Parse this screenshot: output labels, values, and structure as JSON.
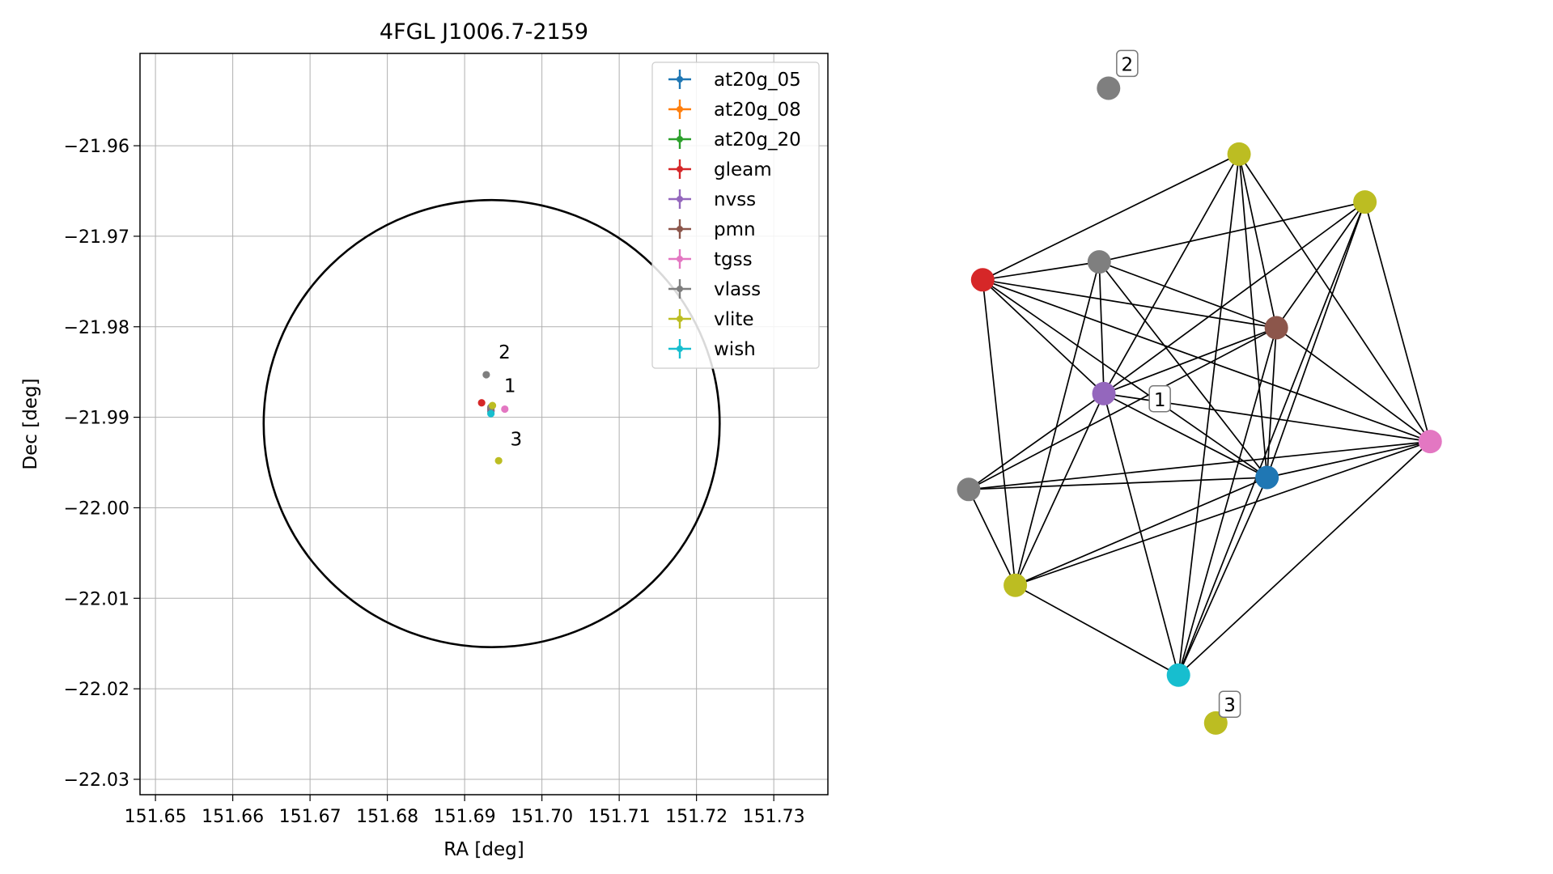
{
  "chart_data": [
    {
      "type": "scatter",
      "title": "4FGL J1006.7-2159",
      "xlabel": "RA [deg]",
      "ylabel": "Dec [deg]",
      "xlim": [
        151.648,
        151.737
      ],
      "ylim": [
        -22.0317,
        -21.9498
      ],
      "xticks": [
        151.65,
        151.66,
        151.67,
        151.68,
        151.69,
        151.7,
        151.71,
        151.72,
        151.73
      ],
      "xtick_labels": [
        "151.65",
        "151.66",
        "151.67",
        "151.68",
        "151.69",
        "151.70",
        "151.71",
        "151.72",
        "151.73"
      ],
      "yticks": [
        -21.96,
        -21.97,
        -21.98,
        -21.99,
        -22.0,
        -22.01,
        -22.02,
        -22.03
      ],
      "ytick_labels": [
        "−21.96",
        "−21.97",
        "−21.98",
        "−21.99",
        "−22.00",
        "−22.01",
        "−22.02",
        "−22.03"
      ],
      "grid": true,
      "legend_placement": "top-right",
      "ellipse": {
        "center_ra": 151.6935,
        "center_dec": -21.9907,
        "radius_ra": 0.0295,
        "radius_dec": 0.0247,
        "color": "#000000"
      },
      "series": [
        {
          "name": "at20g_05",
          "color": "#1f77b4",
          "points": [
            [
              151.6934,
              -21.9893
            ]
          ]
        },
        {
          "name": "at20g_08",
          "color": "#ff7f0e",
          "points": [
            [
              151.6934,
              -21.9893
            ]
          ]
        },
        {
          "name": "at20g_20",
          "color": "#2ca02c",
          "points": [
            [
              151.6934,
              -21.9893
            ]
          ]
        },
        {
          "name": "gleam",
          "color": "#d62728",
          "points": [
            [
              151.6922,
              -21.9884
            ]
          ]
        },
        {
          "name": "nvss",
          "color": "#9467bd",
          "points": [
            [
              151.6934,
              -21.9892
            ]
          ]
        },
        {
          "name": "pmn",
          "color": "#8c564b",
          "points": [
            [
              151.6934,
              -21.989
            ]
          ]
        },
        {
          "name": "tgss",
          "color": "#e377c2",
          "points": [
            [
              151.6952,
              -21.9891
            ]
          ]
        },
        {
          "name": "vlass",
          "color": "#7f7f7f",
          "points": [
            [
              151.6928,
              -21.9853
            ],
            [
              151.6934,
              -21.9889
            ]
          ]
        },
        {
          "name": "vlite",
          "color": "#bcbd22",
          "points": [
            [
              151.6936,
              -21.9887
            ],
            [
              151.6944,
              -21.9948
            ]
          ]
        },
        {
          "name": "wish",
          "color": "#17becf",
          "points": [
            [
              151.6934,
              -21.9896
            ]
          ]
        }
      ],
      "annotations": [
        {
          "text": "1",
          "ra": 151.6951,
          "dec": -21.9872
        },
        {
          "text": "2",
          "ra": 151.6944,
          "dec": -21.9835
        },
        {
          "text": "3",
          "ra": 151.6959,
          "dec": -21.9931
        }
      ]
    },
    {
      "type": "network",
      "nodes": [
        {
          "id": "vlass_2",
          "color": "#7f7f7f",
          "x": 0.3,
          "y": 0.95
        },
        {
          "id": "vlite_top",
          "color": "#bcbd22",
          "x": 0.58,
          "y": 0.84
        },
        {
          "id": "vlite_r",
          "color": "#bcbd22",
          "x": 0.85,
          "y": 0.76
        },
        {
          "id": "vlass_a",
          "color": "#7f7f7f",
          "x": 0.28,
          "y": 0.66
        },
        {
          "id": "gleam",
          "color": "#d62728",
          "x": 0.03,
          "y": 0.63
        },
        {
          "id": "pmn",
          "color": "#8c564b",
          "x": 0.66,
          "y": 0.55
        },
        {
          "id": "nvss",
          "color": "#9467bd",
          "x": 0.29,
          "y": 0.44
        },
        {
          "id": "tgss",
          "color": "#e377c2",
          "x": 0.99,
          "y": 0.36
        },
        {
          "id": "at20g",
          "color": "#1f77b4",
          "x": 0.64,
          "y": 0.3
        },
        {
          "id": "vlass_b",
          "color": "#7f7f7f",
          "x": 0.0,
          "y": 0.28
        },
        {
          "id": "vlite_bl",
          "color": "#bcbd22",
          "x": 0.1,
          "y": 0.12
        },
        {
          "id": "wish",
          "color": "#17becf",
          "x": 0.45,
          "y": -0.03
        },
        {
          "id": "vlite_3",
          "color": "#bcbd22",
          "x": 0.53,
          "y": -0.11
        }
      ],
      "edges": [
        [
          "vlite_top",
          "gleam"
        ],
        [
          "vlite_top",
          "nvss"
        ],
        [
          "vlite_top",
          "at20g"
        ],
        [
          "vlite_top",
          "pmn"
        ],
        [
          "vlite_top",
          "tgss"
        ],
        [
          "vlite_top",
          "wish"
        ],
        [
          "vlite_r",
          "vlass_a"
        ],
        [
          "vlite_r",
          "nvss"
        ],
        [
          "vlite_r",
          "at20g"
        ],
        [
          "vlite_r",
          "pmn"
        ],
        [
          "vlite_r",
          "tgss"
        ],
        [
          "vlite_r",
          "wish"
        ],
        [
          "vlass_a",
          "gleam"
        ],
        [
          "vlass_a",
          "nvss"
        ],
        [
          "vlass_a",
          "pmn"
        ],
        [
          "vlass_a",
          "at20g"
        ],
        [
          "vlass_a",
          "vlite_bl"
        ],
        [
          "gleam",
          "nvss"
        ],
        [
          "gleam",
          "at20g"
        ],
        [
          "gleam",
          "pmn"
        ],
        [
          "gleam",
          "tgss"
        ],
        [
          "gleam",
          "vlite_bl"
        ],
        [
          "pmn",
          "nvss"
        ],
        [
          "pmn",
          "at20g"
        ],
        [
          "pmn",
          "vlass_b"
        ],
        [
          "pmn",
          "tgss"
        ],
        [
          "pmn",
          "wish"
        ],
        [
          "nvss",
          "at20g"
        ],
        [
          "nvss",
          "tgss"
        ],
        [
          "nvss",
          "vlass_b"
        ],
        [
          "nvss",
          "vlite_bl"
        ],
        [
          "nvss",
          "wish"
        ],
        [
          "tgss",
          "at20g"
        ],
        [
          "tgss",
          "vlass_b"
        ],
        [
          "tgss",
          "vlite_bl"
        ],
        [
          "tgss",
          "wish"
        ],
        [
          "at20g",
          "vlass_b"
        ],
        [
          "at20g",
          "vlite_bl"
        ],
        [
          "at20g",
          "wish"
        ],
        [
          "vlass_b",
          "vlite_bl"
        ],
        [
          "vlite_bl",
          "wish"
        ]
      ],
      "node_labels": [
        {
          "text": "1",
          "x": 0.41,
          "y": 0.43
        },
        {
          "text": "2",
          "x": 0.34,
          "y": 0.99
        },
        {
          "text": "3",
          "x": 0.56,
          "y": -0.08
        }
      ]
    }
  ]
}
